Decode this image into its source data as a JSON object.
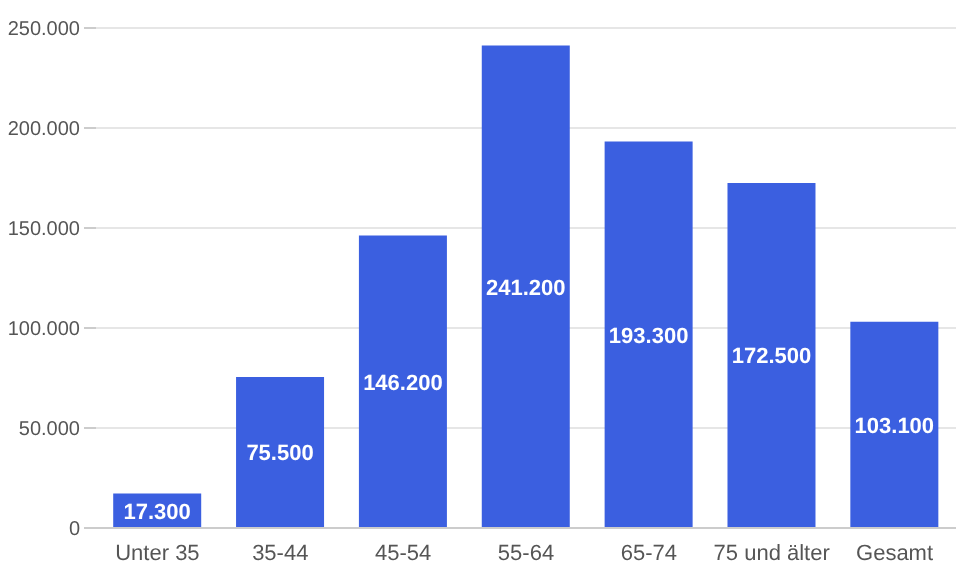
{
  "chart_data": {
    "type": "bar",
    "categories": [
      "Unter 35",
      "35-44",
      "45-54",
      "55-64",
      "65-74",
      "75 und älter",
      "Gesamt"
    ],
    "values": [
      17300,
      75500,
      146200,
      241200,
      193300,
      172500,
      103100
    ],
    "value_labels": [
      "17.300",
      "75.500",
      "146.200",
      "241.200",
      "193.300",
      "172.500",
      "103.100"
    ],
    "color": "#3b5fe0",
    "ylim": [
      0,
      250000
    ],
    "yticks": [
      {
        "value": 0,
        "label": "0"
      },
      {
        "value": 50000,
        "label": "50.000"
      },
      {
        "value": 100000,
        "label": "100.000"
      },
      {
        "value": 150000,
        "label": "150.000"
      },
      {
        "value": 200000,
        "label": "200.000"
      },
      {
        "value": 250000,
        "label": "250.000"
      }
    ],
    "grid": "y",
    "legend": false
  }
}
